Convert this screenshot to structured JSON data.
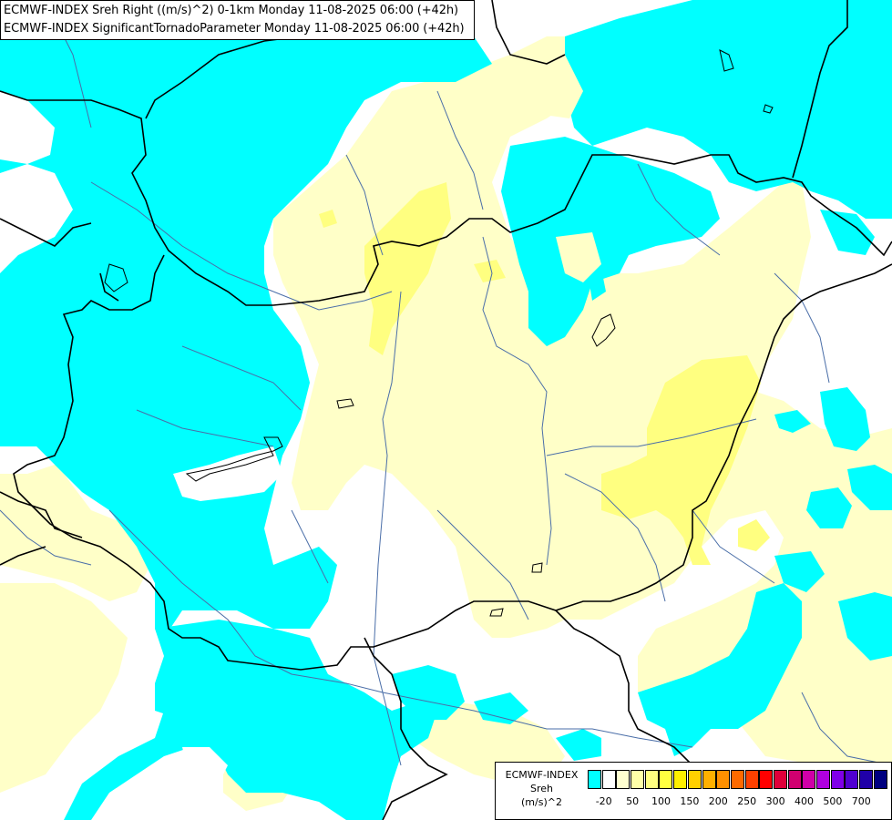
{
  "header": {
    "line1": "ECMWF-INDEX Sreh Right ((m/s)^2) 0-1km Monday 11-08-2025 06:00 (+42h)",
    "line2": "ECMWF-INDEX SignificantTornadoParameter Monday 11-08-2025 06:00 (+42h)"
  },
  "legend": {
    "line1": "ECMWF-INDEX",
    "line2": "Sreh",
    "line3": "(m/s)^2",
    "colors": [
      "#00ffff",
      "#ffffff",
      "#ffffd0",
      "#ffffa8",
      "#ffff80",
      "#ffff40",
      "#ffef00",
      "#ffd000",
      "#ffb000",
      "#ff9000",
      "#ff6a00",
      "#ff4000",
      "#ff0000",
      "#e0003a",
      "#d00070",
      "#d000a8",
      "#b000e0",
      "#8000e8",
      "#5000d0",
      "#2000a8",
      "#000080"
    ],
    "ticks": [
      "-20",
      "50",
      "100",
      "150",
      "200",
      "250",
      "300",
      "400",
      "500",
      "700"
    ]
  },
  "colors": {
    "cyan": "#00ffff",
    "pale_yellow": "#ffffc8",
    "yellow": "#ffff80",
    "river": "#4a6ea8",
    "border": "#000000"
  }
}
